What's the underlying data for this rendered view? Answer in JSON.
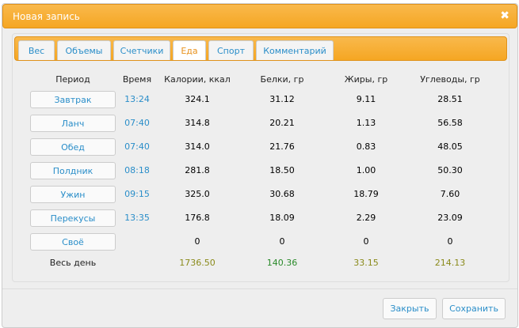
{
  "dialog": {
    "title": "Новая запись",
    "close_icon": "close-x-icon"
  },
  "tabs": [
    {
      "label": "Вес"
    },
    {
      "label": "Объемы"
    },
    {
      "label": "Счетчики"
    },
    {
      "label": "Еда",
      "active": true
    },
    {
      "label": "Спорт"
    },
    {
      "label": "Комментарий"
    }
  ],
  "table": {
    "headers": [
      "Период",
      "Время",
      "Калории, ккал",
      "Белки, гр",
      "Жиры, гр",
      "Углеводы, гр"
    ],
    "rows": [
      {
        "period": "Завтрак",
        "time": "13:24",
        "cal": "324.1",
        "prot": "31.12",
        "fat": "9.11",
        "carb": "28.51"
      },
      {
        "period": "Ланч",
        "time": "07:40",
        "cal": "314.8",
        "prot": "20.21",
        "fat": "1.13",
        "carb": "56.58"
      },
      {
        "period": "Обед",
        "time": "07:40",
        "cal": "314.0",
        "prot": "21.76",
        "fat": "0.83",
        "carb": "48.05"
      },
      {
        "period": "Полдник",
        "time": "08:18",
        "cal": "281.8",
        "prot": "18.50",
        "fat": "1.00",
        "carb": "50.30"
      },
      {
        "period": "Ужин",
        "time": "09:15",
        "cal": "325.0",
        "prot": "30.68",
        "fat": "18.79",
        "carb": "7.60"
      },
      {
        "period": "Перекусы",
        "time": "13:35",
        "cal": "176.8",
        "prot": "18.09",
        "fat": "2.29",
        "carb": "23.09"
      },
      {
        "period": "Своё",
        "time": "",
        "cal": "0",
        "prot": "0",
        "fat": "0",
        "carb": "0"
      }
    ],
    "total": {
      "label": "Весь день",
      "cal": "1736.50",
      "prot": "140.36",
      "fat": "33.15",
      "carb": "214.13"
    },
    "colors": {
      "total_cal": "#8a8a1a",
      "total_prot": "#2a8a2a",
      "total_fat": "#8a8a1a",
      "total_carb": "#8a8a1a"
    }
  },
  "footer": {
    "close": "Закрыть",
    "save": "Сохранить"
  }
}
